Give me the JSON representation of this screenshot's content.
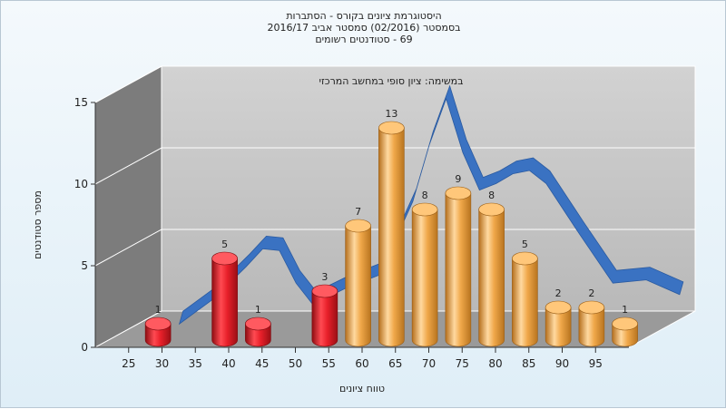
{
  "title_lines": [
    "היסטוגרמת ציונים בקורס - הסתברות",
    "בסמסטר (02/2016) סמסטר אביב 2016/17",
    "69 - סטודנטים רשומים"
  ],
  "chart_data": {
    "type": "bar",
    "subtitle": "במשימה: ציון סופי במחשב המרכזי",
    "xlabel": "טווח ציונים",
    "ylabel": "מספר סטודנטים",
    "x_ticks": [
      "25",
      "30",
      "35",
      "40",
      "45",
      "50",
      "55",
      "60",
      "65",
      "70",
      "75",
      "80",
      "85",
      "90",
      "95"
    ],
    "y_ticks": [
      0,
      5,
      10,
      15
    ],
    "ylim": [
      0,
      15
    ],
    "grid": true,
    "bars": [
      {
        "x": 27.5,
        "value": 1,
        "color": "red"
      },
      {
        "x": 37.5,
        "value": 5,
        "color": "red"
      },
      {
        "x": 42.5,
        "value": 1,
        "color": "red"
      },
      {
        "x": 52.5,
        "value": 3,
        "color": "red"
      },
      {
        "x": 57.5,
        "value": 7,
        "color": "orange"
      },
      {
        "x": 62.5,
        "value": 13,
        "color": "orange"
      },
      {
        "x": 67.5,
        "value": 8,
        "color": "orange"
      },
      {
        "x": 72.5,
        "value": 9,
        "color": "orange"
      },
      {
        "x": 77.5,
        "value": 8,
        "color": "orange"
      },
      {
        "x": 82.5,
        "value": 5,
        "color": "orange"
      },
      {
        "x": 87.5,
        "value": 2,
        "color": "orange"
      },
      {
        "x": 92.5,
        "value": 2,
        "color": "orange"
      },
      {
        "x": 97.5,
        "value": 1,
        "color": "orange"
      }
    ],
    "curve": {
      "color": "#3a72c2",
      "x": [
        25,
        30,
        35,
        37.5,
        40,
        42.5,
        45,
        50,
        55,
        60,
        62.5,
        65,
        67.5,
        70,
        72.5,
        75,
        77.5,
        80,
        85,
        90,
        95,
        100
      ],
      "y": [
        0,
        1.5,
        3.5,
        4.6,
        4.5,
        2.5,
        1.2,
        2.2,
        3,
        7.5,
        11,
        13.8,
        10.5,
        8.2,
        8.6,
        9.2,
        9.4,
        8.6,
        5.5,
        2.5,
        2.7,
        1.8
      ]
    },
    "colors": {
      "red": "#e8202a",
      "orange": "#f0a84a",
      "back_wall": "#c6c6c6",
      "side_wall": "#7c7c7c",
      "floor": "#9a9a9a"
    }
  }
}
